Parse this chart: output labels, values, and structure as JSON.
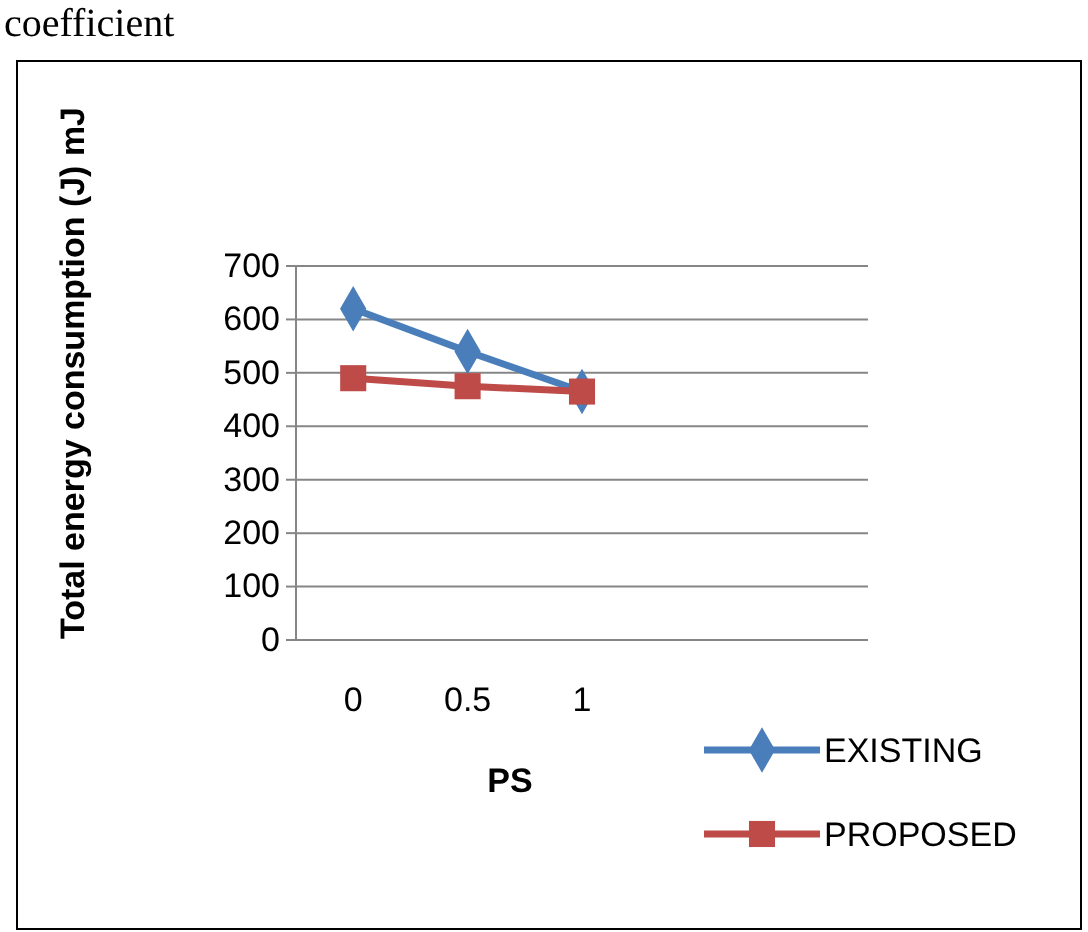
{
  "chart_data": {
    "type": "line",
    "xlabel": "PS",
    "ylabel": "Total energy consumption (J) mJ",
    "annotations": [
      "coefficient"
    ],
    "categories": [
      "0",
      "0.5",
      "1",
      null,
      null
    ],
    "series": [
      {
        "name": "EXISTING",
        "color": "#4a7ebb",
        "values": [
          620,
          540,
          465,
          null,
          null
        ],
        "marker": "diamond"
      },
      {
        "name": "PROPOSED",
        "color": "#be4b48",
        "values": [
          490,
          475,
          465,
          null,
          null
        ],
        "marker": "square"
      }
    ],
    "ylim": [
      0,
      700
    ],
    "yticks": [
      0,
      100,
      200,
      300,
      400,
      500,
      600,
      700
    ],
    "grid": "y",
    "legend": "bottom right",
    "line_style": "solid"
  }
}
